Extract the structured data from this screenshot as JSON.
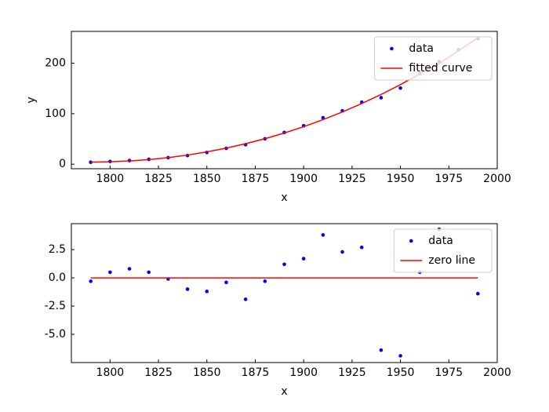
{
  "chart_data": [
    {
      "type": "scatter",
      "xlabel": "x",
      "ylabel": "y",
      "xlim": [
        1780,
        2000
      ],
      "xticks": [
        1800,
        1825,
        1850,
        1875,
        1900,
        1925,
        1950,
        1975,
        2000
      ],
      "ylim": [
        -9,
        263
      ],
      "yticks": [
        0,
        100,
        200
      ],
      "legend": "upper right",
      "series": [
        {
          "name": "data",
          "color": "#0000ff",
          "style": "markers",
          "x": [
            1790,
            1800,
            1810,
            1820,
            1830,
            1840,
            1850,
            1860,
            1870,
            1880,
            1890,
            1900,
            1910,
            1920,
            1930,
            1940,
            1950,
            1960,
            1970,
            1980,
            1990
          ],
          "values": [
            3.9,
            5.3,
            7.2,
            9.6,
            12.9,
            17.1,
            23.2,
            31.4,
            38.6,
            50.2,
            62.9,
            76.0,
            92.0,
            105.7,
            122.8,
            131.7,
            150.7,
            179.3,
            203.3,
            226.5,
            248.7
          ]
        },
        {
          "name": "fitted curve",
          "color": "#ff0000",
          "style": "line",
          "x": [
            1790,
            1800,
            1810,
            1820,
            1830,
            1840,
            1850,
            1860,
            1870,
            1880,
            1890,
            1900,
            1910,
            1920,
            1930,
            1940,
            1950,
            1960,
            1970,
            1980,
            1990
          ],
          "values": [
            4.2,
            4.8,
            6.4,
            9.1,
            13.0,
            18.1,
            24.4,
            31.8,
            40.5,
            50.5,
            61.7,
            74.3,
            88.2,
            103.4,
            120.1,
            138.1,
            157.6,
            178.8,
            199.0,
            225.0,
            250.1
          ]
        }
      ]
    },
    {
      "type": "scatter",
      "xlabel": "x",
      "xlim": [
        1780,
        2000
      ],
      "xticks": [
        1800,
        1825,
        1850,
        1875,
        1900,
        1925,
        1950,
        1975,
        2000
      ],
      "ylim": [
        -7.5,
        4.8
      ],
      "yticks": [
        {
          "value": -5,
          "label": "-5.0"
        },
        -2.5,
        {
          "value": 0,
          "label": "0.0"
        },
        2.5
      ],
      "legend": "upper right",
      "series": [
        {
          "name": "data",
          "color": "#0000ff",
          "style": "markers",
          "x": [
            1790,
            1800,
            1810,
            1820,
            1830,
            1840,
            1850,
            1860,
            1870,
            1880,
            1890,
            1900,
            1910,
            1920,
            1930,
            1940,
            1950,
            1960,
            1970,
            1980,
            1990
          ],
          "values": [
            -0.3,
            0.5,
            0.8,
            0.5,
            -0.1,
            -1.0,
            -1.2,
            -0.4,
            -1.9,
            -0.3,
            1.2,
            1.7,
            3.8,
            2.3,
            2.7,
            -6.4,
            -6.9,
            0.5,
            4.3,
            1.5,
            -1.4
          ]
        },
        {
          "name": "zero line",
          "color": "#ff0000",
          "style": "line",
          "x": [
            1790,
            1990
          ],
          "values": [
            0,
            0
          ]
        }
      ]
    }
  ]
}
